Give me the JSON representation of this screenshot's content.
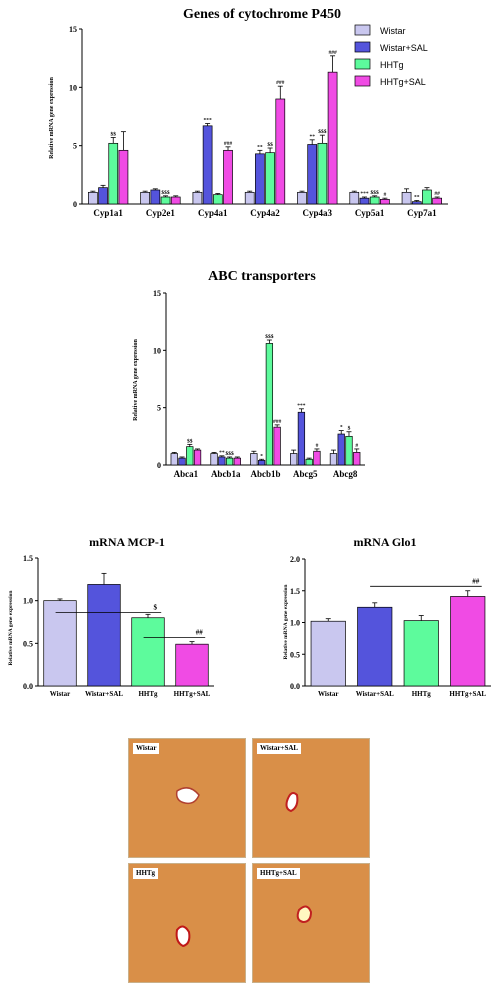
{
  "chart_data": [
    {
      "type": "bar",
      "title": "Genes of cytochrome P450",
      "ylabel": "Relative mRNA gene expression",
      "ylim": [
        0,
        15
      ],
      "yticks": [
        "0",
        "5",
        "10",
        "15"
      ],
      "legend_position": "top-right",
      "categories": [
        "Cyp1a1",
        "Cyp2e1",
        "Cyp4a1",
        "Cyp4a2",
        "Cyp4a3",
        "Cyp5a1",
        "Cyp7a1"
      ],
      "series": [
        {
          "name": "Wistar",
          "color": "#c9c7ef",
          "values": [
            1.0,
            1.0,
            1.0,
            1.0,
            1.0,
            1.0,
            1.0
          ],
          "errors": [
            0.1,
            0.1,
            0.1,
            0.1,
            0.1,
            0.1,
            0.3
          ],
          "marks": [
            "",
            "",
            "",
            "",
            "",
            "",
            ""
          ]
        },
        {
          "name": "Wistar+SAL",
          "color": "#5454dc",
          "values": [
            1.4,
            1.2,
            6.7,
            4.3,
            5.1,
            0.5,
            0.2
          ],
          "errors": [
            0.2,
            0.1,
            0.2,
            0.3,
            0.4,
            0.1,
            0.1
          ],
          "marks": [
            "",
            "",
            "***",
            "**",
            "**",
            "***",
            "**"
          ]
        },
        {
          "name": "HHTg",
          "color": "#5dfb9c",
          "values": [
            5.2,
            0.6,
            0.8,
            4.4,
            5.2,
            0.6,
            1.2
          ],
          "errors": [
            0.5,
            0.1,
            0.1,
            0.4,
            0.7,
            0.1,
            0.2
          ],
          "marks": [
            "$$",
            "$$$",
            "",
            "$$",
            "$$$",
            "$$$",
            ""
          ]
        },
        {
          "name": "HHTg+SAL",
          "color": "#f04be4",
          "values": [
            4.6,
            0.6,
            4.6,
            9.0,
            11.3,
            0.4,
            0.5
          ],
          "errors": [
            1.6,
            0.1,
            0.3,
            1.1,
            1.4,
            0.1,
            0.1
          ],
          "marks": [
            "",
            "",
            "###",
            "###",
            "###",
            "#",
            "##"
          ]
        }
      ]
    },
    {
      "type": "bar",
      "title": "ABC transporters",
      "ylabel": "Relative mRNA gene expression",
      "ylim": [
        0,
        15
      ],
      "yticks": [
        "0",
        "5",
        "10",
        "15"
      ],
      "categories": [
        "Abca1",
        "Abcb1a",
        "Abcb1b",
        "Abcg5",
        "Abcg8"
      ],
      "series": [
        {
          "name": "Wistar",
          "color": "#c9c7ef",
          "values": [
            1.0,
            1.0,
            1.0,
            1.0,
            1.0
          ],
          "errors": [
            0.1,
            0.1,
            0.2,
            0.3,
            0.3
          ],
          "marks": [
            "",
            "",
            "",
            "",
            ""
          ]
        },
        {
          "name": "Wistar+SAL",
          "color": "#5454dc",
          "values": [
            0.6,
            0.7,
            0.4,
            4.6,
            2.7
          ],
          "errors": [
            0.1,
            0.1,
            0.1,
            0.3,
            0.3
          ],
          "marks": [
            "",
            "**",
            "*",
            "***",
            "*"
          ]
        },
        {
          "name": "HHTg",
          "color": "#5dfb9c",
          "values": [
            1.6,
            0.6,
            10.6,
            0.5,
            2.5
          ],
          "errors": [
            0.2,
            0.1,
            0.3,
            0.1,
            0.4
          ],
          "marks": [
            "$$",
            "$$$",
            "$$$",
            "",
            "$"
          ]
        },
        {
          "name": "HHTg+SAL",
          "color": "#f04be4",
          "values": [
            1.3,
            0.6,
            3.3,
            1.2,
            1.1
          ],
          "errors": [
            0.1,
            0.1,
            0.2,
            0.2,
            0.3
          ],
          "marks": [
            "",
            "",
            "###",
            "#",
            "#"
          ]
        }
      ]
    },
    {
      "type": "bar",
      "title": "mRNA MCP-1",
      "ylabel": "Relative mRNA gene expression",
      "ylim": [
        0,
        1.5
      ],
      "yticks": [
        "0.0",
        "0.5",
        "1.0",
        "1.5"
      ],
      "categories": [
        "Wistar",
        "Wistar+SAL",
        "HHTg",
        "HHTg+SAL"
      ],
      "colors": [
        "#c9c7ef",
        "#5454dc",
        "#5dfb9c",
        "#f04be4"
      ],
      "values": [
        1.0,
        1.19,
        0.8,
        0.49
      ],
      "errors": [
        0.02,
        0.13,
        0.04,
        0.03
      ],
      "annotations": [
        {
          "text": "$",
          "from": 0,
          "to": 2,
          "y": 0.86
        },
        {
          "text": "##",
          "from": 2,
          "to": 3,
          "y": 0.57
        }
      ]
    },
    {
      "type": "bar",
      "title": "mRNA Glo1",
      "ylabel": "Relative mRNA gene expression",
      "ylim": [
        0,
        2.0
      ],
      "yticks": [
        "0.0",
        "0.5",
        "1.0",
        "1.5",
        "2.0"
      ],
      "categories": [
        "Wistar",
        "Wistar+SAL",
        "HHTg",
        "HHTg+SAL"
      ],
      "colors": [
        "#c9c7ef",
        "#5454dc",
        "#5dfb9c",
        "#f04be4"
      ],
      "values": [
        1.02,
        1.24,
        1.03,
        1.41
      ],
      "errors": [
        0.04,
        0.07,
        0.08,
        0.09
      ],
      "annotations": [
        {
          "text": "##",
          "from": 1,
          "to": 3,
          "y": 1.57
        }
      ]
    }
  ],
  "micrographs": {
    "labels": [
      "Wistar",
      "Wistar+SAL",
      "HHTg",
      "HHTg+SAL"
    ]
  }
}
